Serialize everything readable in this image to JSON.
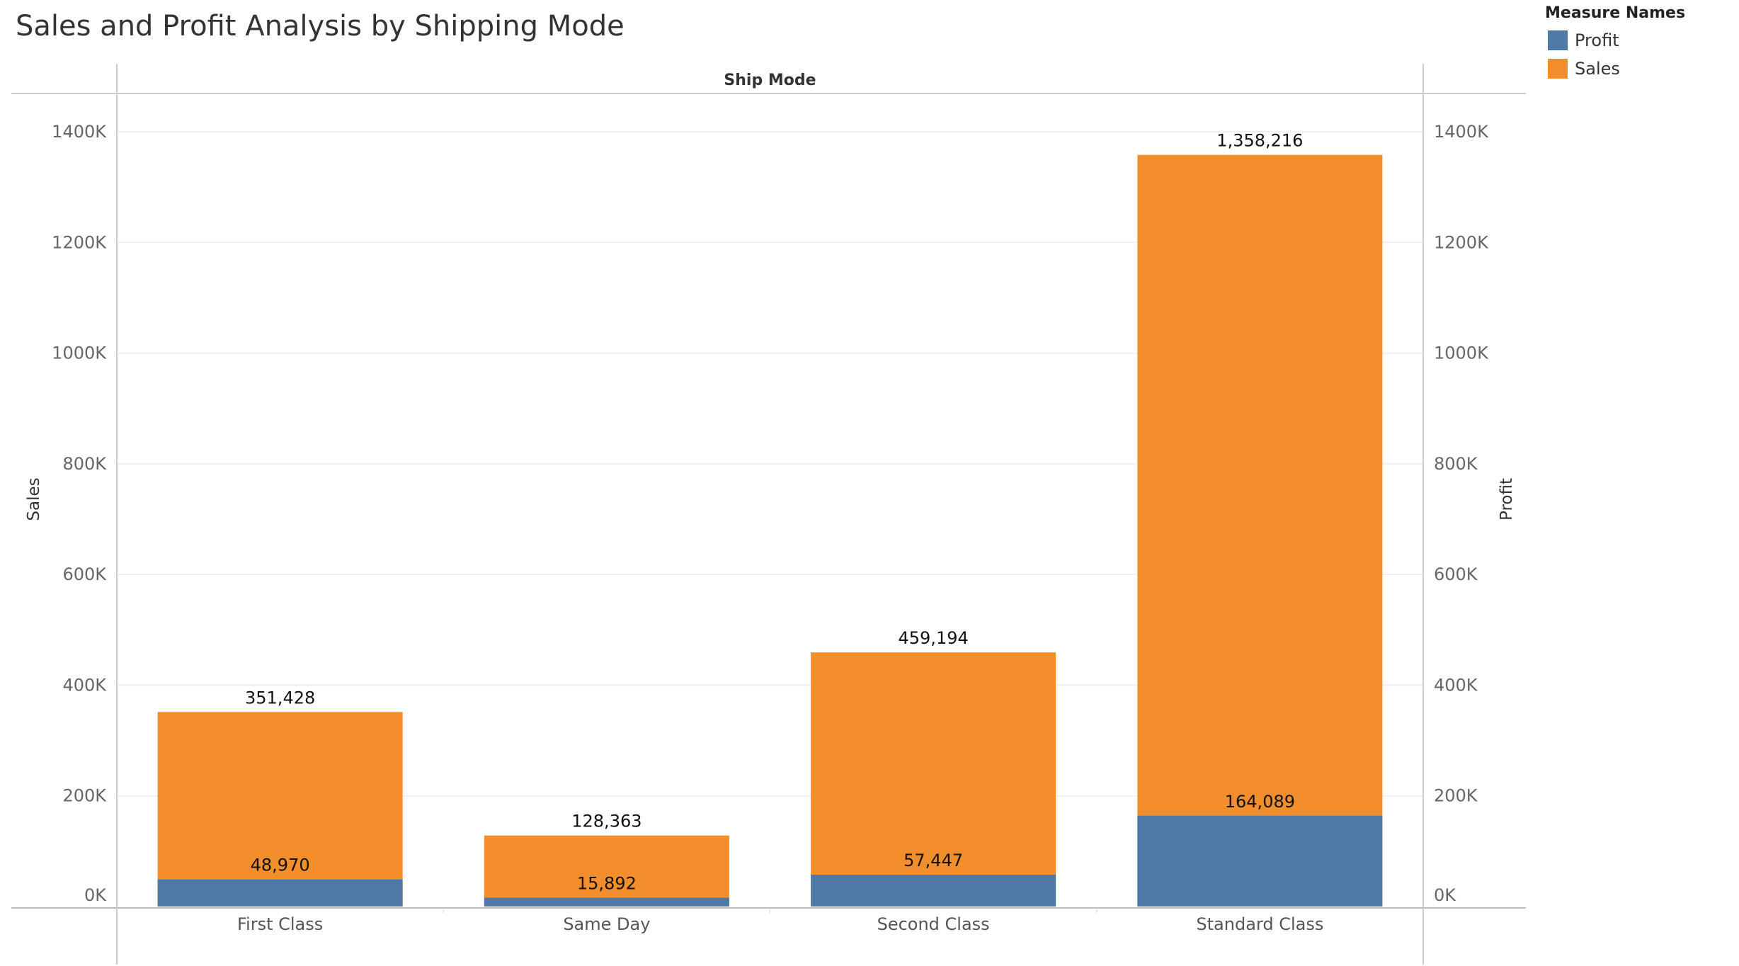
{
  "page": {
    "title": "Sales and Profit Analysis by Shipping Mode"
  },
  "legend": {
    "title": "Measure Names",
    "items": [
      {
        "label": "Profit",
        "color": "#4e79a7"
      },
      {
        "label": "Sales",
        "color": "#f28e2b"
      }
    ]
  },
  "chart_data": {
    "type": "bar",
    "title": "Sales and Profit Analysis by Shipping Mode",
    "column_header": "Ship Mode",
    "categories": [
      "First Class",
      "Same Day",
      "Second Class",
      "Standard Class"
    ],
    "series": [
      {
        "name": "Sales",
        "axis": "left",
        "color": "#f28e2b",
        "values": [
          351428,
          128363,
          459194,
          1358216
        ],
        "labels": [
          "351,428",
          "128,363",
          "459,194",
          "1,358,216"
        ]
      },
      {
        "name": "Profit",
        "axis": "right",
        "color": "#4e79a7",
        "values": [
          48970,
          15892,
          57447,
          164089
        ],
        "labels": [
          "48,970",
          "15,892",
          "57,447",
          "164,089"
        ]
      }
    ],
    "ylabel": "Sales",
    "y2label": "Profit",
    "ylim": [
      0,
      1400000
    ],
    "yticks": [
      "0K",
      "200K",
      "400K",
      "600K",
      "800K",
      "1000K",
      "1200K",
      "1400K"
    ],
    "y2ticks": [
      "0K",
      "200K",
      "400K",
      "600K",
      "800K",
      "1000K",
      "1200K",
      "1400K"
    ],
    "grid": true,
    "legend_position": "top-right"
  }
}
